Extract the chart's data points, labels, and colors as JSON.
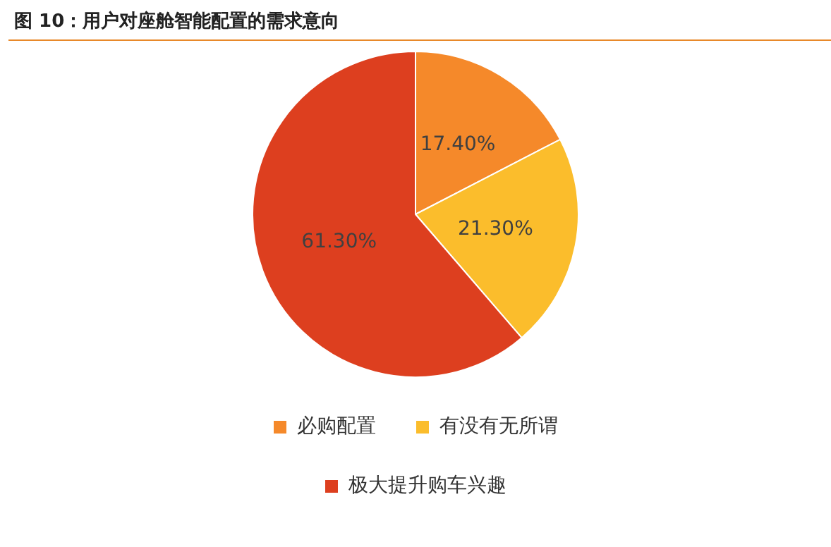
{
  "chart_data": {
    "type": "pie",
    "title": "图 10：用户对座舱智能配置的需求意向",
    "categories": [
      "必购配置",
      "有没有无所谓",
      "极大提升购车兴趣"
    ],
    "values": [
      17.4,
      21.3,
      61.3
    ],
    "colors": [
      "#f5892a",
      "#fbbd2c",
      "#dd3f1f"
    ],
    "value_labels": [
      "17.40%",
      "21.30%",
      "61.30%"
    ],
    "legend": "bottom"
  }
}
